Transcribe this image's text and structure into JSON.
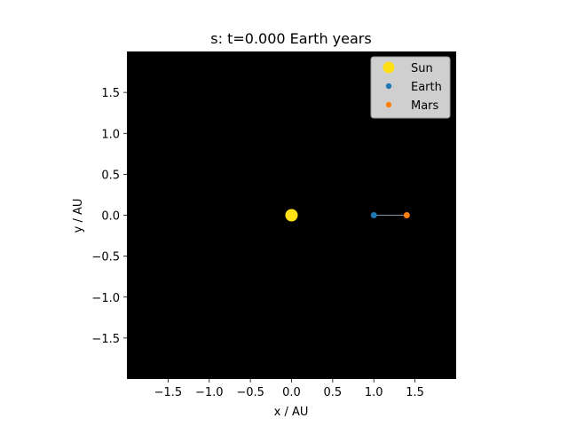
{
  "chart_data": {
    "type": "scatter",
    "title": "s: t=0.000 Earth years",
    "xlabel": "x / AU",
    "ylabel": "y / AU",
    "xlim": [
      -2.0,
      2.0
    ],
    "ylim": [
      -2.0,
      2.0
    ],
    "xticks": [
      -1.5,
      -1.0,
      -0.5,
      0.0,
      0.5,
      1.0,
      1.5
    ],
    "xticklabels": [
      "−1.5",
      "−1.0",
      "−0.5",
      "0.0",
      "0.5",
      "1.0",
      "1.5"
    ],
    "yticks": [
      -1.5,
      -1.0,
      -0.5,
      0.0,
      0.5,
      1.0,
      1.5
    ],
    "yticklabels": [
      "−1.5",
      "−1.0",
      "−0.5",
      "0.0",
      "0.5",
      "1.0",
      "1.5"
    ],
    "grid": false,
    "background_color": "#000000",
    "legend_position": "top-right",
    "series": [
      {
        "name": "Sun",
        "x": [
          0.0
        ],
        "y": [
          0.0
        ],
        "color": "#ffe014",
        "size": "large"
      },
      {
        "name": "Earth",
        "x": [
          1.0
        ],
        "y": [
          0.0
        ],
        "color": "#1f77b4",
        "size": "small"
      },
      {
        "name": "Mars",
        "x": [
          1.4
        ],
        "y": [
          0.0
        ],
        "color": "#ff7f0e",
        "size": "small"
      }
    ],
    "connector": {
      "from": "Earth",
      "to": "Mars",
      "color": "#7f95a8"
    }
  }
}
